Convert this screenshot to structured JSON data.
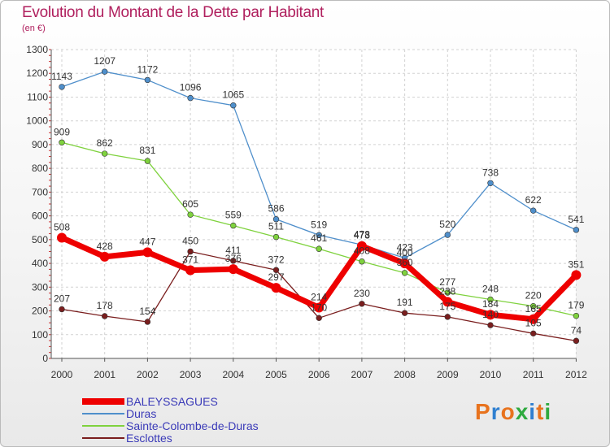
{
  "title": "Evolution du Montant de la Dette par Habitant",
  "subtitle": "(en €)",
  "logo": {
    "text": "Proxiti",
    "colors": [
      "#e8731e",
      "#2f7fd0",
      "#e8731e",
      "#2faa3f",
      "#2f7fd0",
      "#e8731e",
      "#2faa3f"
    ]
  },
  "chart_data": {
    "type": "line",
    "title": "Evolution du Montant de la Dette par Habitant",
    "ylabel": "(en €)",
    "xlabel": "",
    "ylim": [
      0,
      1300
    ],
    "yticks": [
      0,
      100,
      200,
      300,
      400,
      500,
      600,
      700,
      800,
      900,
      1000,
      1100,
      1200,
      1300
    ],
    "grid": true,
    "legend_placement": "bottom-left",
    "x": [
      "2000",
      "2001",
      "2002",
      "2003",
      "2004",
      "2005",
      "2006",
      "2007",
      "2008",
      "2009",
      "2010",
      "2011",
      "2012"
    ],
    "series": [
      {
        "name": "BALEYSSAGUES",
        "color": "#ee0000",
        "emphasis": true,
        "values": [
          508,
          428,
          447,
          371,
          376,
          297,
          214,
          473,
          400,
          238,
          184,
          165,
          351
        ]
      },
      {
        "name": "Duras",
        "color": "#4f8fcb",
        "values": [
          1143,
          1207,
          1172,
          1096,
          1065,
          586,
          519,
          478,
          423,
          520,
          738,
          622,
          541
        ]
      },
      {
        "name": "Sainte-Colombe-de-Duras",
        "color": "#7fd23e",
        "values": [
          909,
          862,
          831,
          605,
          559,
          511,
          461,
          408,
          360,
          277,
          248,
          220,
          179
        ]
      },
      {
        "name": "Esclottes",
        "color": "#7a1e1e",
        "values": [
          207,
          178,
          154,
          450,
          411,
          372,
          170,
          230,
          191,
          175,
          140,
          105,
          74
        ]
      }
    ]
  }
}
